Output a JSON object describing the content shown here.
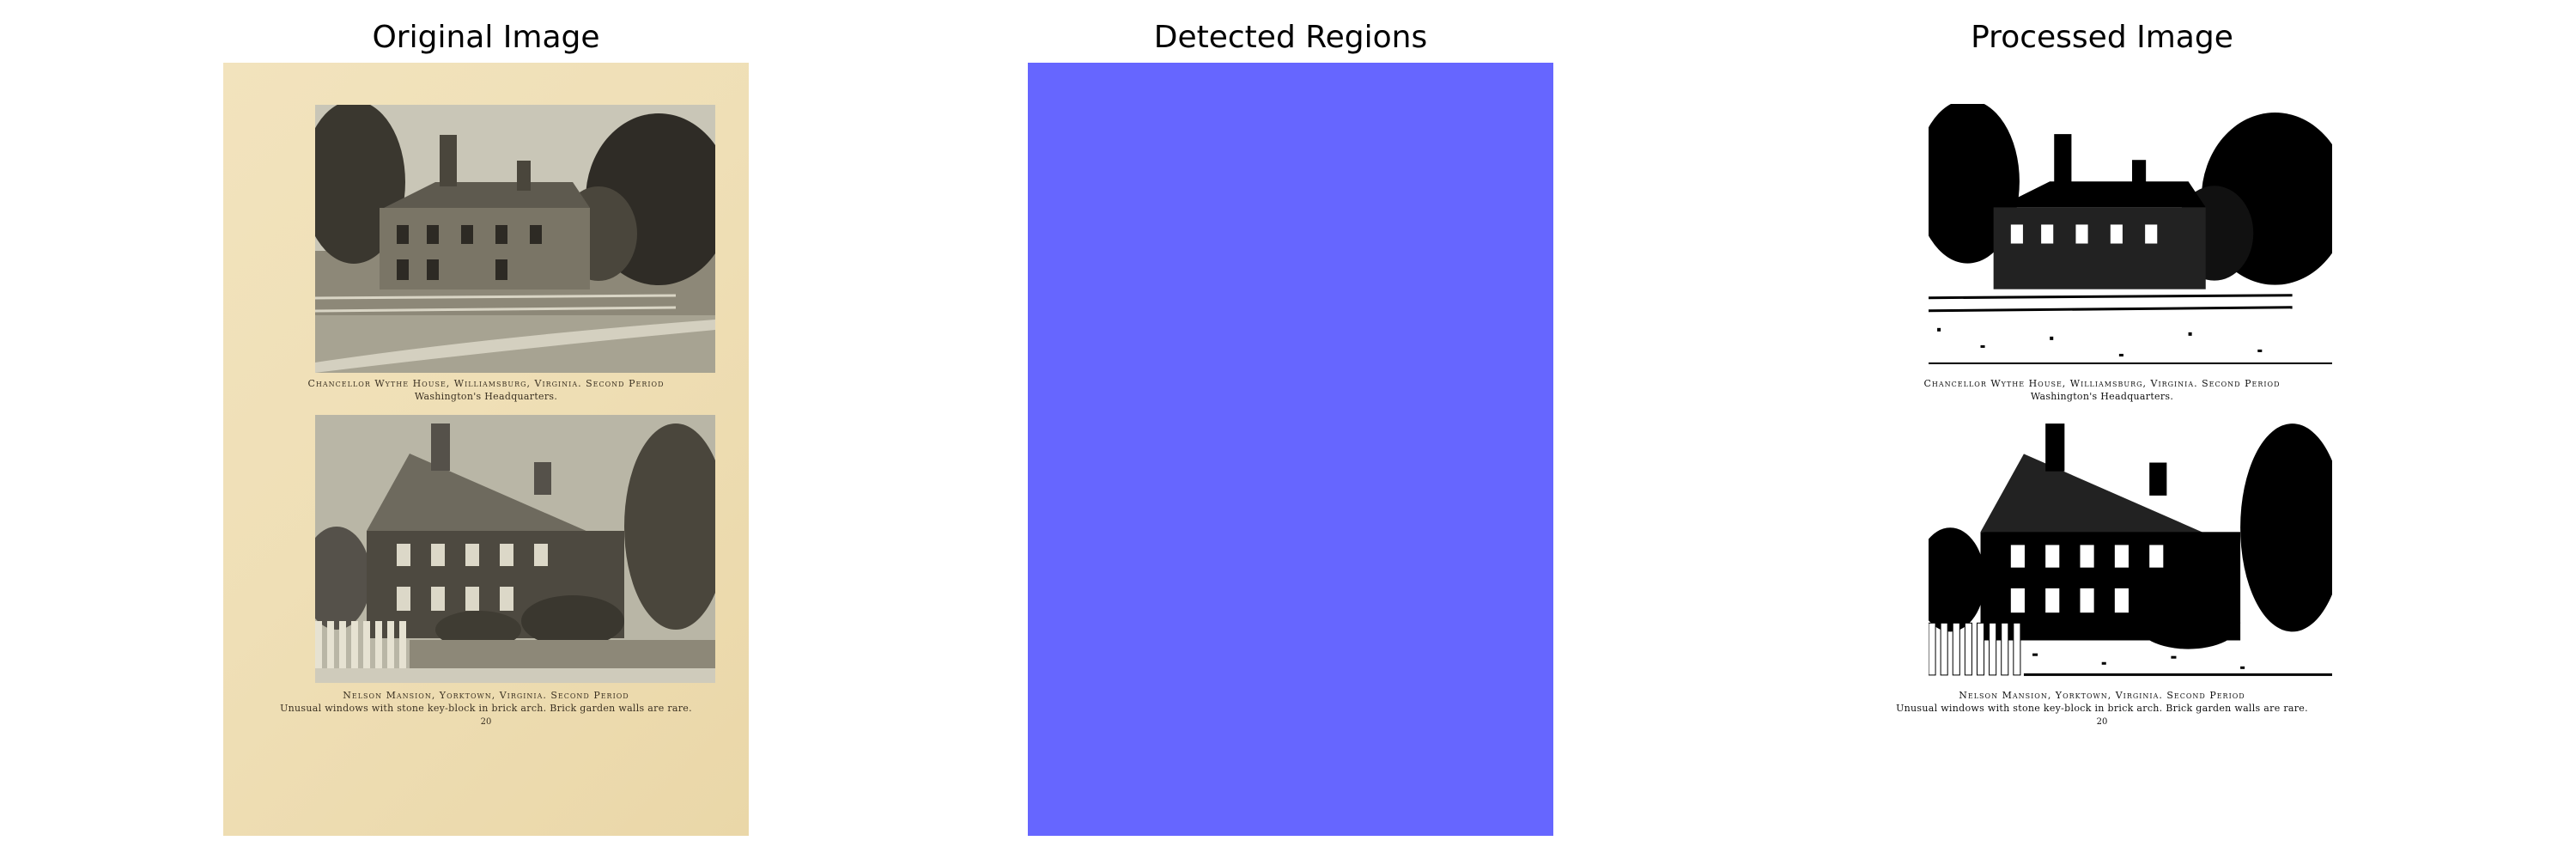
{
  "panels": [
    {
      "title": "Original Image"
    },
    {
      "title": "Detected Regions"
    },
    {
      "title": "Processed Image"
    }
  ],
  "document": {
    "caption_top_line1": "Chancellor Wythe House, Williamsburg, Virginia.  Second Period",
    "caption_top_line2": "Washington's Headquarters.",
    "caption_bottom_line1": "Nelson Mansion, Yorktown, Virginia.  Second Period",
    "caption_bottom_line2": "Unusual windows with stone key-block in brick arch.   Brick garden walls are rare.",
    "page_number": "20"
  },
  "colors": {
    "regions_fill": "#6666ff",
    "paper": "#efdfb6"
  }
}
